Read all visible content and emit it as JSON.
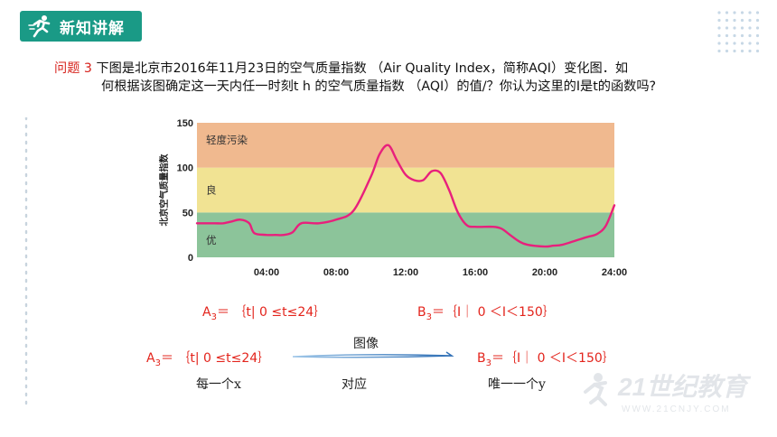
{
  "header": {
    "title": "新知讲解",
    "accent": "#1a9a86"
  },
  "question": {
    "label": "问题 3",
    "line1": "下图是北京市2016年11月23日的空气质量指数 （Air Quality Index，简称AQI）变化图．如",
    "line2": "何根据该图确定这一天内任一时刻t h 的空气质量指数 （AQI）的值/？你认为这里的I是t的函数吗?"
  },
  "chart_data": {
    "type": "line",
    "ylabel": "北京空气质量指数",
    "ylim": [
      0,
      150
    ],
    "xlim": [
      0,
      24
    ],
    "yticks": [
      "0",
      "50",
      "100",
      "150"
    ],
    "xticks": [
      "04:00",
      "08:00",
      "12:00",
      "16:00",
      "20:00",
      "24:00"
    ],
    "xtick_values": [
      4,
      8,
      12,
      16,
      20,
      24
    ],
    "ytick_values": [
      0,
      50,
      100,
      150
    ],
    "bands": [
      {
        "label": "优",
        "from": 0,
        "to": 50,
        "color": "#8cc49a"
      },
      {
        "label": "良",
        "from": 50,
        "to": 100,
        "color": "#f1e393"
      },
      {
        "label": "轻度污染",
        "from": 100,
        "to": 150,
        "color": "#f0b98f"
      }
    ],
    "line_color": "#e8207c",
    "series": [
      {
        "x": [
          0,
          1,
          1.5,
          2,
          2.5,
          3,
          3.3,
          4,
          4.5,
          5,
          5.5,
          6,
          7,
          8,
          9,
          10,
          10.5,
          11,
          11.5,
          12,
          12.5,
          13,
          13.5,
          14,
          14.5,
          15,
          15.5,
          16,
          17,
          17.5,
          18,
          18.5,
          19,
          20,
          20.5,
          21,
          22,
          22.5,
          23,
          23.5,
          24
        ],
        "y": [
          38,
          38,
          38,
          40,
          42,
          38,
          27,
          25,
          25,
          25,
          28,
          38,
          38,
          42,
          52,
          90,
          115,
          125,
          108,
          92,
          86,
          86,
          96,
          94,
          75,
          50,
          36,
          34,
          34,
          32,
          25,
          18,
          14,
          12,
          13,
          14,
          20,
          23,
          26,
          35,
          58
        ]
      }
    ]
  },
  "mapping": {
    "row1_left": {
      "prefix": "A",
      "sub": "3",
      "body": "＝ ｛t| 0 ≤t≤24｝"
    },
    "row1_right": {
      "prefix": "B",
      "sub": "3",
      "body": "＝｛I｜ 0 ＜I＜150｝"
    },
    "row2_left": {
      "prefix": "A",
      "sub": "3",
      "body": "＝ ｛t| 0 ≤t≤24｝"
    },
    "row2_right": {
      "prefix": "B",
      "sub": "3",
      "body": "＝｛I｜ 0 ＜I＜150｝"
    },
    "arrow_label": "图像",
    "under_left": "每一个x",
    "under_mid": "对应",
    "under_right": "唯一一个y",
    "red": "#e3241c"
  },
  "watermark": {
    "text": "21世纪教育",
    "sub": "WWW.21CNJY.COM"
  }
}
